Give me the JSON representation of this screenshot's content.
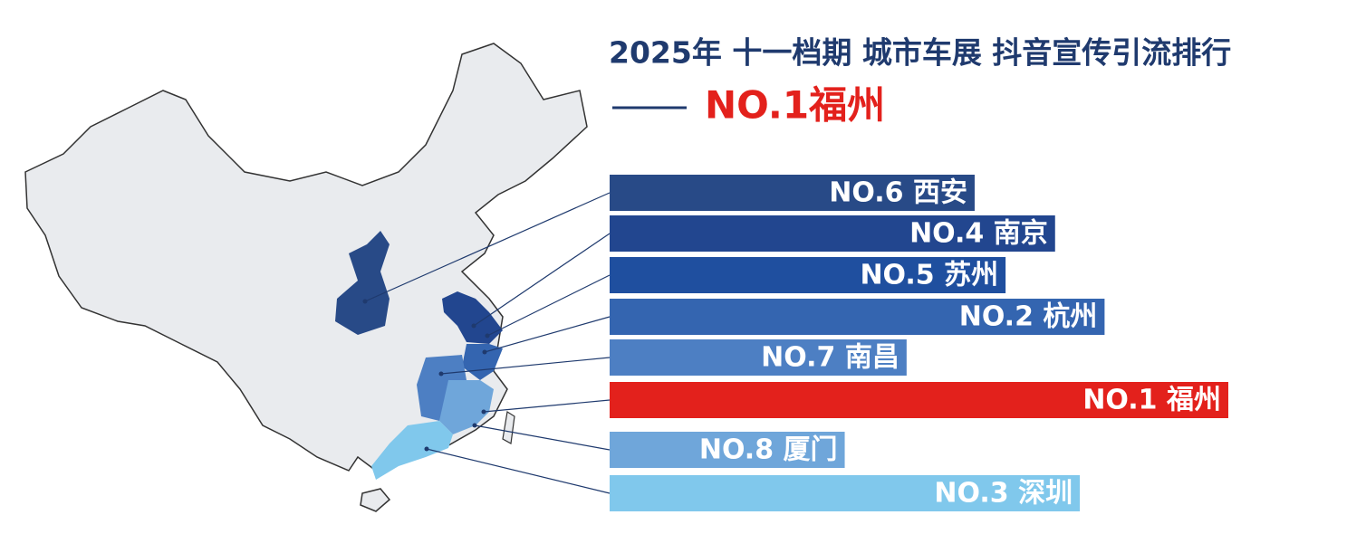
{
  "chart_data": {
    "type": "bar",
    "orientation": "horizontal",
    "title": "2025年  十一档期 城市车展 抖音宣传引流排行",
    "subtitle": "NO.1福州",
    "categories": [
      "NO.6 西安",
      "NO.4 南京",
      "NO.5 苏州",
      "NO.2 杭州",
      "NO.7 南昌",
      "NO.1 福州",
      "NO.8 厦门",
      "NO.3 深圳"
    ],
    "values": [
      59,
      72,
      64,
      80,
      48,
      100,
      38,
      76
    ],
    "colors": [
      "#284a87",
      "#22468f",
      "#1f4f9f",
      "#3465b0",
      "#4d7fc3",
      "#e3211c",
      "#6fa6da",
      "#80c8ec"
    ],
    "xlim": [
      0,
      100
    ]
  }
}
